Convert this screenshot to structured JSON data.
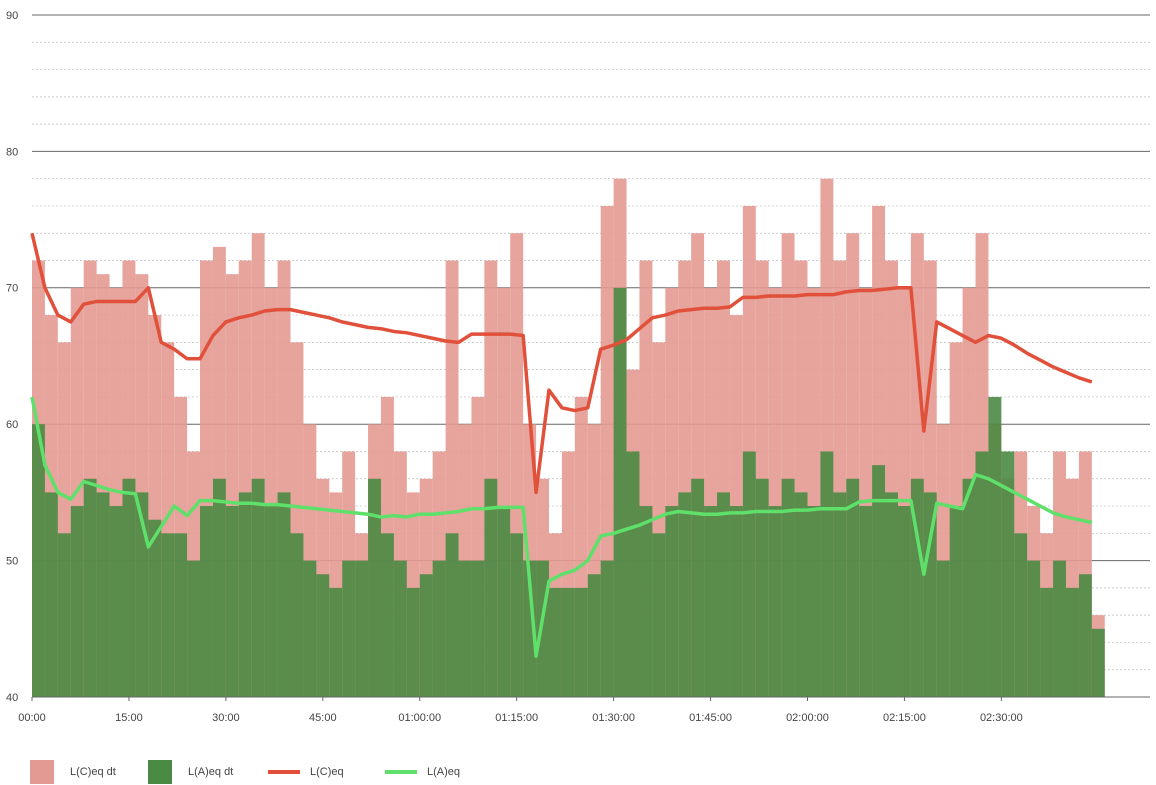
{
  "chart_data": {
    "type": "line",
    "x": [
      0,
      2,
      4,
      6,
      8,
      10,
      12,
      14,
      16,
      18,
      20,
      22,
      24,
      26,
      28,
      30,
      32,
      34,
      36,
      38,
      40,
      42,
      44,
      46,
      48,
      50,
      52,
      54,
      56,
      58,
      60,
      62,
      64,
      66,
      68,
      70,
      72,
      74,
      76,
      78,
      80,
      82,
      84,
      86,
      88,
      90,
      92,
      94,
      96,
      98,
      100,
      102,
      104,
      106,
      108,
      110,
      112,
      114,
      116,
      118,
      120,
      122,
      124,
      126,
      128,
      130,
      132,
      134,
      136,
      138,
      140,
      142,
      144,
      146,
      148,
      150,
      152,
      154,
      156,
      158,
      160,
      162,
      164
    ],
    "xlim": [
      0,
      173
    ],
    "xticks": [
      {
        "value": 0,
        "label": "00:00"
      },
      {
        "value": 15,
        "label": "15:00"
      },
      {
        "value": 30,
        "label": "30:00"
      },
      {
        "value": 45,
        "label": "45:00"
      },
      {
        "value": 60,
        "label": "01:00:00"
      },
      {
        "value": 75,
        "label": "01:15:00"
      },
      {
        "value": 90,
        "label": "01:30:00"
      },
      {
        "value": 105,
        "label": "01:45:00"
      },
      {
        "value": 120,
        "label": "02:00:00"
      },
      {
        "value": 135,
        "label": "02:15:00"
      },
      {
        "value": 150,
        "label": "02:30:00"
      }
    ],
    "ylim": [
      40,
      90
    ],
    "yticks": [
      40,
      50,
      60,
      70,
      80,
      90
    ],
    "grid": true,
    "minor_grid": true,
    "legend": "bottom-left",
    "series": [
      {
        "name": "L(C)eq dt",
        "type": "bar",
        "color": "#e39a92",
        "values": [
          72,
          68,
          66,
          70,
          72,
          71,
          70,
          72,
          71,
          68,
          66,
          62,
          58,
          72,
          73,
          71,
          72,
          74,
          70,
          72,
          66,
          60,
          56,
          55,
          58,
          52,
          60,
          62,
          58,
          55,
          56,
          58,
          72,
          60,
          62,
          72,
          70,
          74,
          60,
          56,
          52,
          58,
          62,
          60,
          76,
          78,
          64,
          72,
          66,
          70,
          72,
          74,
          70,
          72,
          68,
          76,
          72,
          70,
          74,
          72,
          70,
          78,
          72,
          74,
          70,
          76,
          72,
          70,
          74,
          72,
          60,
          66,
          70,
          74,
          60,
          56,
          58,
          54,
          52,
          58,
          56,
          58,
          46
        ]
      },
      {
        "name": "L(A)eq dt",
        "type": "bar",
        "color": "#4a8a44",
        "values": [
          60,
          55,
          52,
          54,
          56,
          55,
          54,
          56,
          55,
          53,
          52,
          52,
          50,
          54,
          56,
          54,
          55,
          56,
          54,
          55,
          52,
          50,
          49,
          48,
          50,
          50,
          56,
          52,
          50,
          48,
          49,
          50,
          52,
          50,
          50,
          56,
          54,
          52,
          50,
          50,
          48,
          48,
          48,
          49,
          50,
          70,
          58,
          54,
          52,
          54,
          55,
          56,
          54,
          55,
          54,
          58,
          56,
          54,
          56,
          55,
          54,
          58,
          55,
          56,
          54,
          57,
          55,
          54,
          56,
          55,
          50,
          54,
          56,
          58,
          62,
          58,
          52,
          50,
          48,
          50,
          48,
          49,
          45
        ]
      },
      {
        "name": "L(C)eq",
        "type": "line",
        "color": "#e0503a",
        "values": [
          74,
          70,
          68,
          67.5,
          68.8,
          69,
          69,
          69,
          69,
          70,
          66,
          65.5,
          64.8,
          64.8,
          66.5,
          67.5,
          67.8,
          68,
          68.3,
          68.4,
          68.4,
          68.2,
          68,
          67.8,
          67.5,
          67.3,
          67.1,
          67,
          66.8,
          66.7,
          66.5,
          66.3,
          66.1,
          66,
          66.6,
          66.6,
          66.6,
          66.6,
          66.5,
          55,
          62.5,
          61.2,
          61,
          61.2,
          65.5,
          65.8,
          66.2,
          67,
          67.8,
          68,
          68.3,
          68.4,
          68.5,
          68.5,
          68.6,
          69.3,
          69.3,
          69.4,
          69.4,
          69.4,
          69.5,
          69.5,
          69.5,
          69.7,
          69.8,
          69.8,
          69.9,
          70,
          70,
          59.5,
          67.5,
          67,
          66.5,
          66,
          66.5,
          66.3,
          65.8,
          65.2,
          64.7,
          64.2,
          63.8,
          63.4,
          63.1
        ]
      },
      {
        "name": "L(A)eq",
        "type": "line",
        "color": "#5ee06a",
        "values": [
          62,
          57,
          55,
          54.5,
          55.8,
          55.5,
          55.2,
          55,
          54.9,
          51,
          52.5,
          54,
          53.3,
          54.4,
          54.4,
          54.3,
          54.2,
          54.2,
          54.1,
          54.1,
          54,
          53.9,
          53.8,
          53.7,
          53.6,
          53.5,
          53.4,
          53.2,
          53.3,
          53.2,
          53.4,
          53.4,
          53.5,
          53.6,
          53.8,
          53.8,
          53.9,
          53.9,
          53.9,
          43,
          48.5,
          49,
          49.3,
          50,
          51.8,
          52,
          52.3,
          52.6,
          53,
          53.4,
          53.6,
          53.5,
          53.4,
          53.4,
          53.5,
          53.5,
          53.6,
          53.6,
          53.6,
          53.7,
          53.7,
          53.8,
          53.8,
          53.8,
          54.3,
          54.4,
          54.4,
          54.4,
          54.4,
          49,
          54.2,
          54,
          53.8,
          56.3,
          56,
          55.5,
          55,
          54.5,
          54,
          53.5,
          53.2,
          53,
          52.8
        ]
      }
    ]
  }
}
